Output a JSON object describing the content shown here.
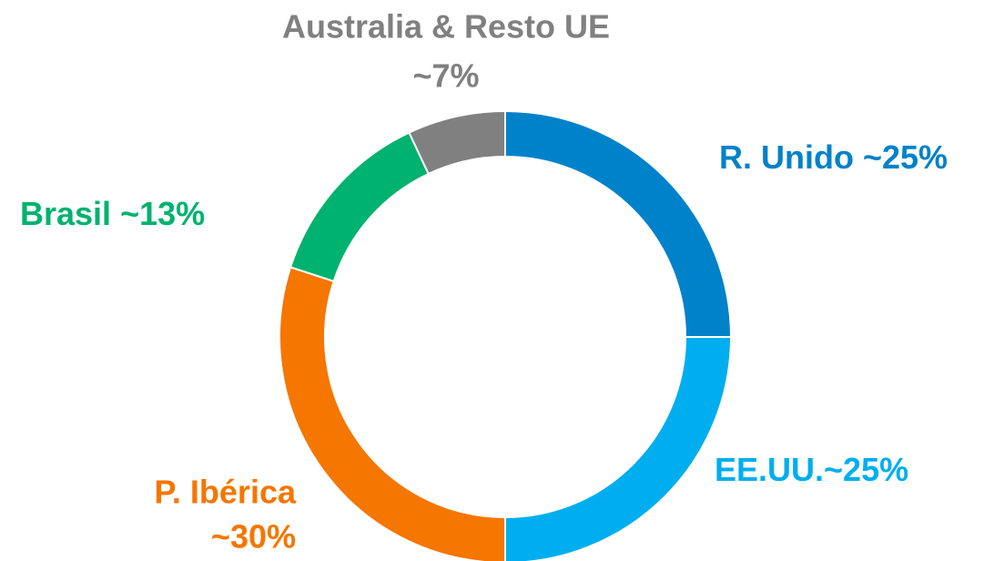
{
  "chart_data": {
    "type": "donut",
    "categories": [
      "R. Unido",
      "EE.UU.",
      "P. Ibérica",
      "Brasil",
      "Australia & Resto UE"
    ],
    "values": [
      25,
      25,
      30,
      13,
      7
    ],
    "value_labels": [
      "~25%",
      "~25%",
      "~30%",
      "~13%",
      "~7%"
    ],
    "colors": [
      "#0082ca",
      "#00aeef",
      "#f57600",
      "#00b26f",
      "#808080"
    ]
  }
}
